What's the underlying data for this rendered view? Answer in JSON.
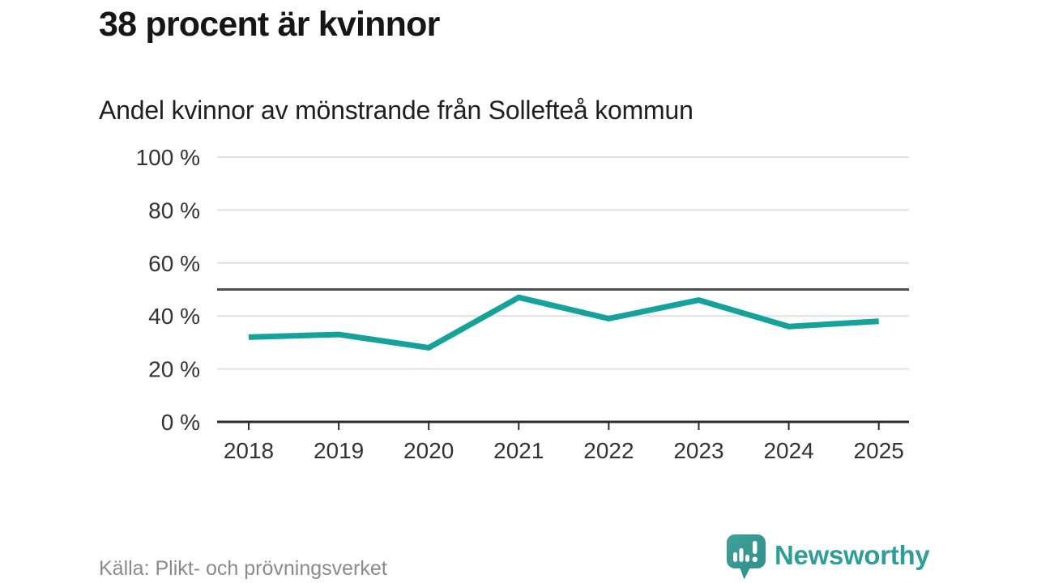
{
  "chart_data": {
    "type": "line",
    "title": "38 procent är kvinnor",
    "subtitle": "Andel kvinnor av mönstrande från Sollefteå kommun",
    "x": [
      "2018",
      "2019",
      "2020",
      "2021",
      "2022",
      "2023",
      "2024",
      "2025"
    ],
    "series": [
      {
        "name": "Andel kvinnor av mönstrande",
        "values": [
          32,
          33,
          28,
          47,
          39,
          46,
          36,
          38
        ]
      }
    ],
    "ylim": [
      0,
      100
    ],
    "yticks": [
      0,
      20,
      40,
      60,
      80,
      100
    ],
    "ytick_labels": [
      "0 %",
      "20 %",
      "40 %",
      "60 %",
      "80 %",
      "100 %"
    ],
    "reference_line": 50,
    "grid": true,
    "legend": "none"
  },
  "colors": {
    "line": "#14a29a",
    "reference_line": "#4d4d56",
    "grid": "#e1e1e1",
    "axis": "#2b2b2b",
    "tick_label": "#333333",
    "source_text": "#8a8a91",
    "brand_teal": "#2f9e98",
    "logo_bubble_top": "#41a09a",
    "logo_bubble_bottom": "#2e8e8a"
  },
  "footer": {
    "source": "Källa: Plikt- och prövningsverket",
    "brand_wordmark": "Newsworthy"
  }
}
